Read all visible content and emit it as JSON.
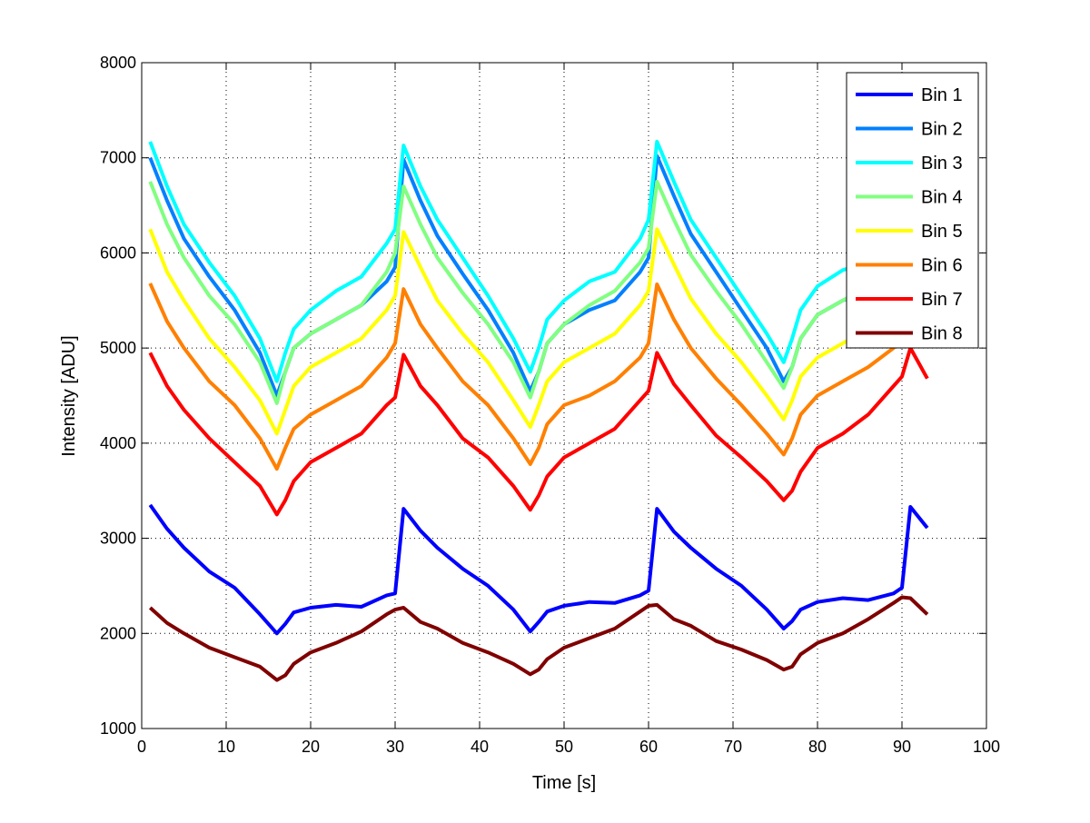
{
  "chart_data": {
    "type": "line",
    "title": "",
    "xlabel": "Time [s]",
    "ylabel": "Intensity [ADU]",
    "xlim": [
      0,
      100
    ],
    "ylim": [
      1000,
      8000
    ],
    "xticks": [
      0,
      10,
      20,
      30,
      40,
      50,
      60,
      70,
      80,
      90,
      100
    ],
    "yticks": [
      1000,
      2000,
      3000,
      4000,
      5000,
      6000,
      7000,
      8000
    ],
    "grid": true,
    "legend_position": "top-right",
    "x": [
      1,
      3,
      5,
      8,
      11,
      14,
      16,
      17,
      18,
      20,
      23,
      26,
      29,
      30,
      31,
      33,
      35,
      38,
      41,
      44,
      46,
      47,
      48,
      50,
      53,
      56,
      59,
      60,
      61,
      63,
      65,
      68,
      71,
      74,
      76,
      77,
      78,
      80,
      83,
      86,
      89,
      90,
      91,
      93
    ],
    "series": [
      {
        "name": "Bin 1",
        "color": "#0000ff",
        "values": [
          3350,
          3100,
          2900,
          2650,
          2480,
          2200,
          2000,
          2100,
          2220,
          2270,
          2300,
          2280,
          2400,
          2420,
          3310,
          3080,
          2900,
          2680,
          2500,
          2250,
          2020,
          2120,
          2230,
          2290,
          2330,
          2320,
          2400,
          2450,
          3310,
          3070,
          2900,
          2680,
          2500,
          2250,
          2050,
          2130,
          2250,
          2330,
          2370,
          2350,
          2420,
          2480,
          3330,
          3110
        ]
      },
      {
        "name": "Bin 2",
        "color": "#0080ff",
        "values": [
          7000,
          6550,
          6150,
          5750,
          5400,
          4950,
          4500,
          4750,
          5000,
          5150,
          5300,
          5450,
          5700,
          5850,
          6980,
          6550,
          6180,
          5780,
          5400,
          4950,
          4550,
          4750,
          5050,
          5250,
          5400,
          5500,
          5800,
          5950,
          7020,
          6600,
          6200,
          5800,
          5400,
          5000,
          4650,
          4800,
          5100,
          5350,
          5500,
          5600,
          5750,
          5900,
          7000,
          6600
        ]
      },
      {
        "name": "Bin 3",
        "color": "#00ffff",
        "values": [
          7170,
          6700,
          6300,
          5900,
          5550,
          5100,
          4650,
          4950,
          5200,
          5400,
          5600,
          5750,
          6100,
          6250,
          7130,
          6700,
          6350,
          5950,
          5550,
          5100,
          4750,
          5000,
          5300,
          5500,
          5700,
          5800,
          6150,
          6350,
          7170,
          6750,
          6350,
          5950,
          5550,
          5150,
          4850,
          5100,
          5400,
          5650,
          5820,
          5900,
          6200,
          6400,
          7200,
          6800
        ]
      },
      {
        "name": "Bin 4",
        "color": "#80ff80",
        "values": [
          6750,
          6300,
          5950,
          5550,
          5250,
          4850,
          4420,
          4750,
          5000,
          5150,
          5300,
          5450,
          5800,
          6000,
          6700,
          6300,
          5950,
          5580,
          5250,
          4850,
          4480,
          4750,
          5050,
          5250,
          5450,
          5600,
          5900,
          6050,
          6750,
          6350,
          5980,
          5600,
          5250,
          4850,
          4580,
          4800,
          5100,
          5350,
          5500,
          5650,
          5900,
          6050,
          6750,
          6400
        ]
      },
      {
        "name": "Bin 5",
        "color": "#ffff00",
        "values": [
          6250,
          5800,
          5500,
          5100,
          4800,
          4450,
          4100,
          4350,
          4600,
          4800,
          4950,
          5100,
          5400,
          5550,
          6220,
          5850,
          5500,
          5150,
          4850,
          4450,
          4170,
          4400,
          4650,
          4850,
          5000,
          5150,
          5450,
          5600,
          6250,
          5880,
          5520,
          5150,
          4850,
          4500,
          4250,
          4450,
          4700,
          4900,
          5050,
          5200,
          5450,
          5600,
          6250,
          5900
        ]
      },
      {
        "name": "Bin 6",
        "color": "#ff8000",
        "values": [
          5680,
          5280,
          5000,
          4650,
          4400,
          4050,
          3730,
          3950,
          4150,
          4300,
          4450,
          4600,
          4900,
          5050,
          5620,
          5250,
          5000,
          4650,
          4400,
          4050,
          3780,
          3950,
          4200,
          4400,
          4500,
          4650,
          4900,
          5050,
          5670,
          5300,
          5000,
          4680,
          4400,
          4100,
          3880,
          4050,
          4300,
          4500,
          4650,
          4800,
          5000,
          5150,
          5700,
          5350
        ]
      },
      {
        "name": "Bin 7",
        "color": "#ff0000",
        "values": [
          4950,
          4600,
          4350,
          4050,
          3800,
          3550,
          3250,
          3400,
          3600,
          3800,
          3950,
          4100,
          4400,
          4480,
          4930,
          4600,
          4400,
          4050,
          3850,
          3550,
          3300,
          3450,
          3650,
          3850,
          4000,
          4150,
          4450,
          4550,
          4950,
          4620,
          4400,
          4080,
          3850,
          3600,
          3400,
          3500,
          3700,
          3950,
          4100,
          4300,
          4600,
          4700,
          5000,
          4680
        ]
      },
      {
        "name": "Bin 8",
        "color": "#800000",
        "values": [
          2270,
          2110,
          2000,
          1850,
          1750,
          1650,
          1510,
          1560,
          1680,
          1800,
          1900,
          2020,
          2200,
          2250,
          2270,
          2120,
          2050,
          1900,
          1800,
          1680,
          1570,
          1620,
          1730,
          1850,
          1950,
          2050,
          2230,
          2290,
          2300,
          2150,
          2080,
          1920,
          1830,
          1720,
          1620,
          1650,
          1780,
          1900,
          2000,
          2150,
          2320,
          2380,
          2370,
          2200
        ]
      }
    ]
  }
}
